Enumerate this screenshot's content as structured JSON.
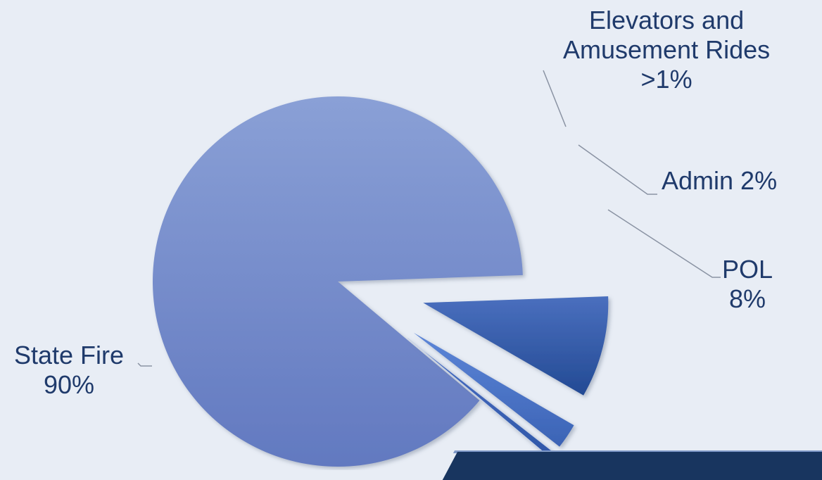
{
  "chart_data": {
    "type": "pie",
    "slices": [
      {
        "label_lines": [
          "State Fire",
          "90%"
        ],
        "value": 90,
        "color_top": "#8aa0d6",
        "color_bottom": "#6279c0"
      },
      {
        "label_lines": [
          "POL",
          "8%"
        ],
        "value": 8,
        "color_top": "#4a6fbe",
        "color_bottom": "#234a94"
      },
      {
        "label_lines": [
          "Admin 2%"
        ],
        "value": 2,
        "color_top": "#5d86d8",
        "color_bottom": "#3b63b5"
      },
      {
        "label_lines": [
          "Elevators and",
          "Amusement Rides",
          ">1%"
        ],
        "value": 0.5,
        "color_top": "#4a6fc4",
        "color_bottom": "#2f57a8"
      }
    ],
    "legend": "none"
  },
  "theme": {
    "background": "#e8edf5",
    "label_color": "#1f3a6b",
    "leader_line_color": "#8a93a3",
    "footer_bar_color": "#18355f"
  }
}
